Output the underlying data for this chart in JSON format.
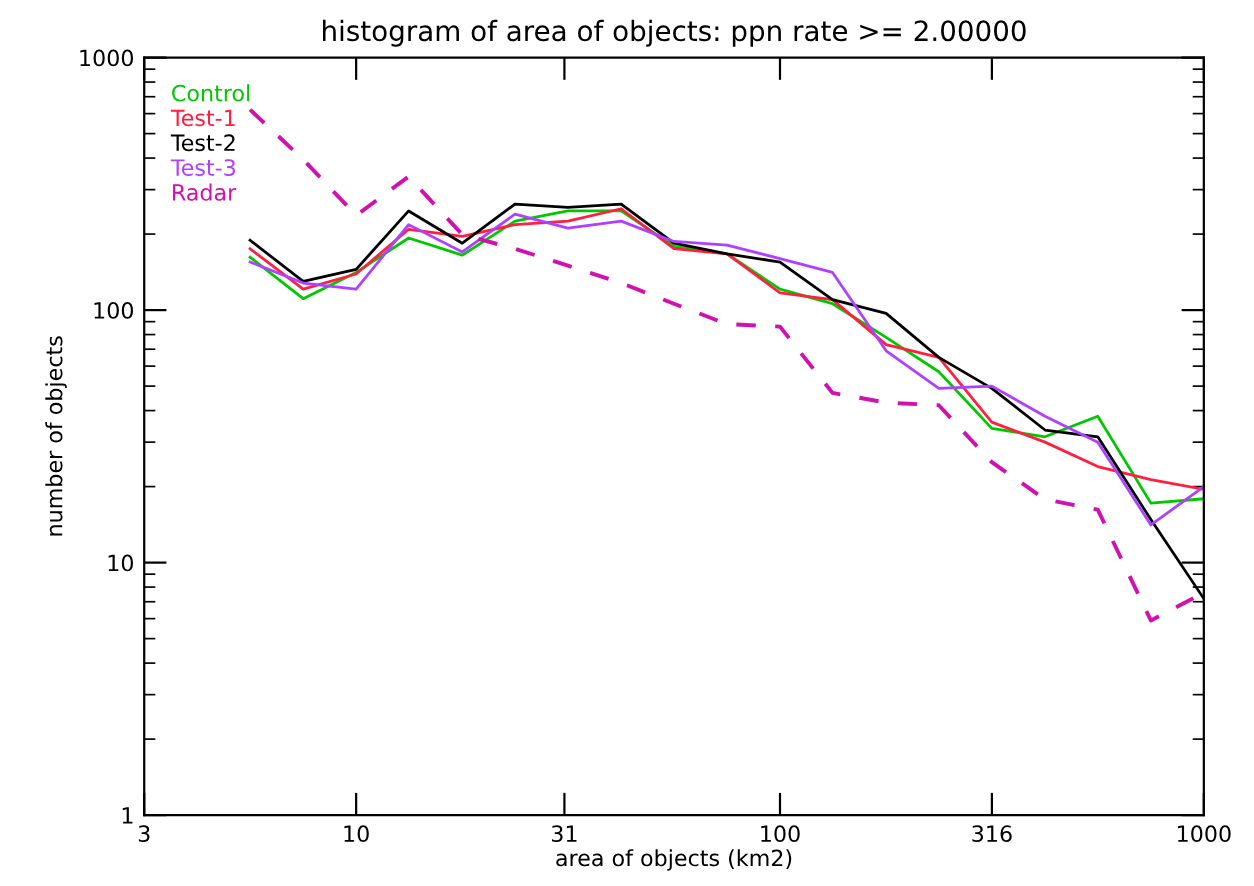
{
  "chart_data": {
    "type": "line",
    "title": "histogram of area of objects: ppn rate >= 2.00000",
    "xlabel": "area of objects (km2)",
    "ylabel": "number of objects",
    "log": "xy",
    "x": [
      5.62,
      7.5,
      10,
      13.3,
      17.8,
      23.7,
      31.6,
      42.2,
      56.2,
      75,
      100,
      133,
      178,
      237,
      316,
      422,
      562,
      750,
      1000
    ],
    "xlim": [
      3.162,
      1000
    ],
    "xticks": [
      {
        "value": 3.162,
        "label": "3"
      },
      10,
      31,
      100,
      {
        "value": 316.2,
        "label": "316"
      },
      1000
    ],
    "ylim": [
      1,
      1000
    ],
    "yticks": [
      1,
      10,
      100,
      1000
    ],
    "grid": false,
    "legend": "top left",
    "marker": "none",
    "series": [
      {
        "name": "Control",
        "color": "#00c800",
        "values": [
          162,
          111,
          141,
          193,
          165,
          225,
          247,
          247,
          179,
          167,
          121,
          106,
          78,
          57,
          34,
          31.5,
          38,
          17.2,
          17.9
        ]
      },
      {
        "name": "Test-1",
        "color": "#ff2040",
        "values": [
          175,
          121,
          139,
          209,
          196,
          218,
          225,
          252,
          175,
          167,
          117,
          110,
          73,
          65,
          36,
          30,
          24,
          21.3,
          19.5
        ]
      },
      {
        "name": "Test-2",
        "color": "#000000",
        "values": [
          189,
          130,
          145,
          247,
          184,
          263,
          255,
          263,
          184,
          167,
          155,
          110,
          97,
          65,
          49,
          33.5,
          31.5,
          14.8,
          7.2
        ]
      },
      {
        "name": "Test-3",
        "color": "#b040ff",
        "values": [
          155,
          128,
          121,
          218,
          170,
          240,
          211,
          225,
          187,
          181,
          160,
          141,
          69,
          49,
          50,
          38,
          30,
          14.1,
          20
        ]
      },
      {
        "name": "Radar",
        "color": "#d010b0",
        "line_style": "dashed",
        "values": [
          622,
          395,
          237,
          338,
          199,
          175,
          150,
          128,
          106,
          88,
          86,
          47,
          43,
          42,
          25,
          17.8,
          16.2,
          5.9,
          7.6
        ]
      }
    ]
  }
}
